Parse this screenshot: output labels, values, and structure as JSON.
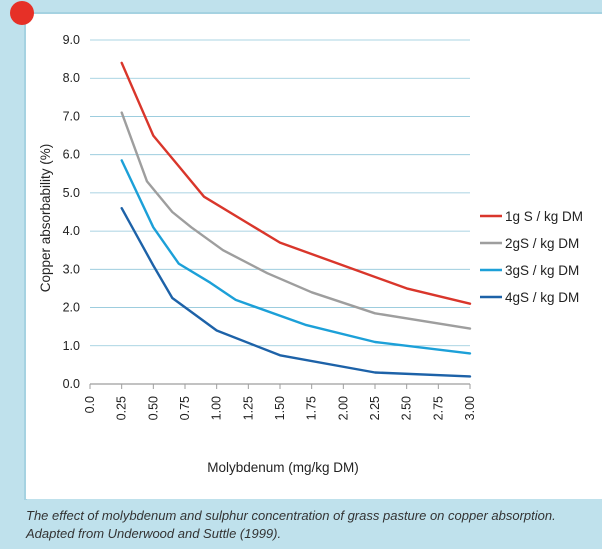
{
  "chart_data": {
    "type": "line",
    "xlabel": "Molybdenum (mg/kg DM)",
    "ylabel": "Copper absorbability (%)",
    "xlim": [
      0,
      3
    ],
    "ylim": [
      0,
      9
    ],
    "x_ticks": [
      "0.0",
      "0.25",
      "0.50",
      "0.75",
      "1.00",
      "1.25",
      "1.50",
      "1.75",
      "2.00",
      "2.25",
      "2.50",
      "2.75",
      "3.00"
    ],
    "y_ticks": [
      "0.0",
      "1.0",
      "2.0",
      "3.0",
      "4.0",
      "5.0",
      "6.0",
      "7.0",
      "8.0",
      "9.0"
    ],
    "grid": true,
    "legend_position": "right",
    "series": [
      {
        "name": "1g S / kg DM",
        "color": "#d9362b",
        "points": [
          [
            0.25,
            8.4
          ],
          [
            0.5,
            6.5
          ],
          [
            0.7,
            5.7
          ],
          [
            0.9,
            4.9
          ],
          [
            1.25,
            4.2
          ],
          [
            1.5,
            3.7
          ],
          [
            2.0,
            3.1
          ],
          [
            2.5,
            2.5
          ],
          [
            3.0,
            2.1
          ]
        ]
      },
      {
        "name": "2gS / kg DM",
        "color": "#9e9e9e",
        "points": [
          [
            0.25,
            7.1
          ],
          [
            0.45,
            5.3
          ],
          [
            0.65,
            4.5
          ],
          [
            0.8,
            4.1
          ],
          [
            1.05,
            3.5
          ],
          [
            1.4,
            2.9
          ],
          [
            1.75,
            2.4
          ],
          [
            2.25,
            1.85
          ],
          [
            3.0,
            1.45
          ]
        ]
      },
      {
        "name": "3gS / kg DM",
        "color": "#1ca0d8",
        "points": [
          [
            0.25,
            5.85
          ],
          [
            0.5,
            4.1
          ],
          [
            0.7,
            3.15
          ],
          [
            0.95,
            2.65
          ],
          [
            1.15,
            2.2
          ],
          [
            1.7,
            1.55
          ],
          [
            2.25,
            1.1
          ],
          [
            3.0,
            0.8
          ]
        ]
      },
      {
        "name": "4gS / kg DM",
        "color": "#1d62a8",
        "points": [
          [
            0.25,
            4.6
          ],
          [
            0.5,
            3.1
          ],
          [
            0.65,
            2.25
          ],
          [
            1.0,
            1.4
          ],
          [
            1.5,
            0.75
          ],
          [
            2.25,
            0.3
          ],
          [
            3.0,
            0.2
          ]
        ]
      }
    ]
  },
  "caption": "The effect of molybdenum and sulphur concentration of grass pasture on copper absorption. Adapted from Underwood and Suttle (1999).",
  "colors": {
    "accent_dot": "#e63027",
    "frame": "#a5d2e1",
    "background": "#bfe1ec"
  }
}
